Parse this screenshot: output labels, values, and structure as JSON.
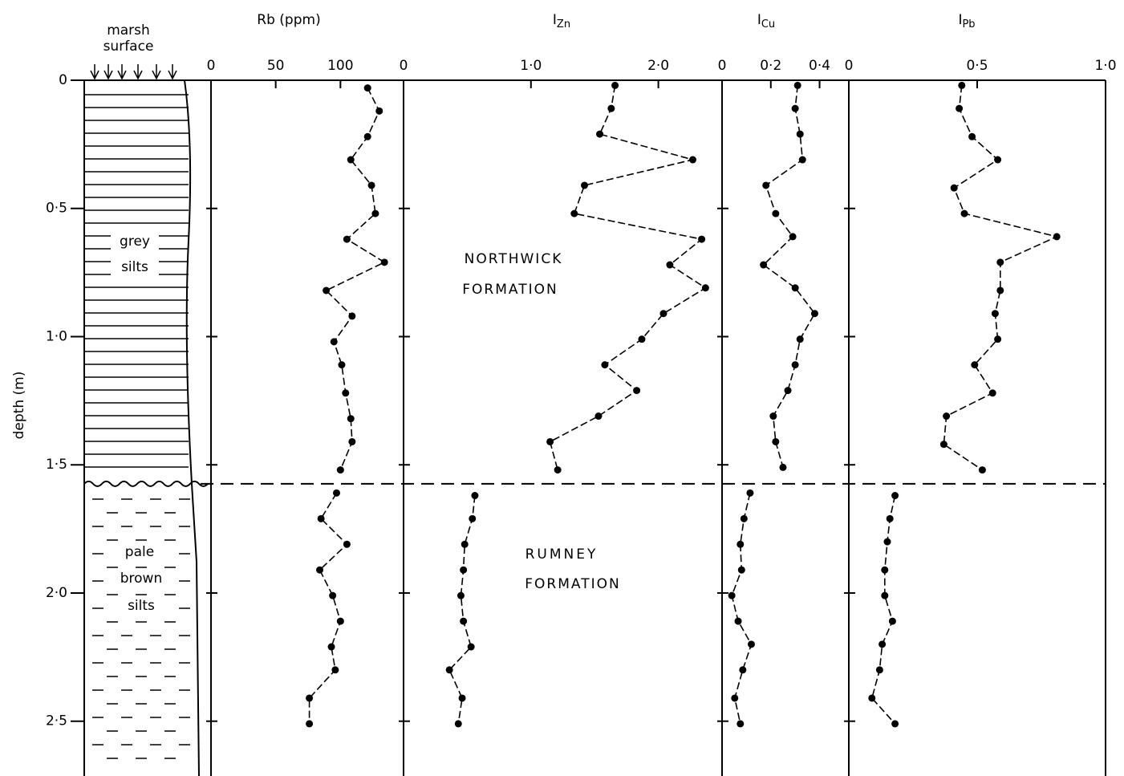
{
  "depth_axis": {
    "label": "depth (m)",
    "ylim": [
      0,
      2.7
    ],
    "yticks": [
      0,
      {
        "value": 0.5,
        "label": "0·5"
      },
      {
        "value": 1,
        "label": "1·0"
      },
      {
        "value": 1.5,
        "label": "1·5"
      },
      {
        "value": 2,
        "label": "2·0"
      },
      {
        "value": 2.5,
        "label": "2·5"
      }
    ]
  },
  "boundary_depth": 1.574,
  "lithology": {
    "surface_label": [
      "marsh",
      "surface"
    ],
    "upper_label": [
      "grey",
      "silts"
    ],
    "lower_label": [
      "pale",
      "brown",
      "silts"
    ]
  },
  "formations": {
    "upper": [
      "NORTHWICK",
      "FORMATION"
    ],
    "lower": [
      "RUMNEY",
      "FORMATION"
    ]
  },
  "chart_data": [
    {
      "type": "line",
      "title": "Rb (ppm)",
      "xlim": [
        0,
        150
      ],
      "xticks": [
        0,
        50,
        100
      ],
      "series": [
        {
          "color": "#000000",
          "depth": [
            0.03,
            0.12,
            0.22,
            0.31,
            0.41,
            0.52,
            0.62,
            0.71,
            0.82,
            0.92,
            1.02,
            1.11,
            1.22,
            1.32,
            1.41,
            1.52
          ],
          "values": [
            121,
            130,
            121,
            108,
            124,
            127,
            105,
            134,
            89,
            109,
            95,
            101,
            104,
            108,
            109,
            100
          ]
        },
        {
          "color": "#000000",
          "depth": [
            1.61,
            1.71,
            1.81,
            1.91,
            2.01,
            2.11,
            2.21,
            2.3,
            2.41,
            2.51
          ],
          "values": [
            97,
            85,
            105,
            84,
            94,
            100,
            93,
            96,
            76,
            76
          ]
        }
      ]
    },
    {
      "type": "line",
      "title": "I",
      "subscript": "Zn",
      "xlim": [
        0,
        2.5
      ],
      "xticks": [
        0,
        {
          "value": 1,
          "label": "1·0"
        },
        {
          "value": 2,
          "label": "2·0"
        }
      ],
      "series": [
        {
          "color": "#000000",
          "depth": [
            0.02,
            0.11,
            0.21,
            0.31,
            0.41,
            0.52,
            0.62,
            0.72,
            0.81,
            0.91,
            1.01,
            1.11,
            1.21,
            1.31,
            1.41,
            1.52
          ],
          "values": [
            1.66,
            1.63,
            1.54,
            2.27,
            1.42,
            1.34,
            2.34,
            2.09,
            2.37,
            2.04,
            1.87,
            1.58,
            1.83,
            1.53,
            1.15,
            1.21
          ]
        },
        {
          "color": "#000000",
          "depth": [
            1.62,
            1.71,
            1.81,
            1.91,
            2.01,
            2.11,
            2.21,
            2.3,
            2.41,
            2.51
          ],
          "values": [
            0.56,
            0.54,
            0.48,
            0.47,
            0.45,
            0.47,
            0.53,
            0.36,
            0.46,
            0.43
          ]
        }
      ]
    },
    {
      "type": "line",
      "title": "I",
      "subscript": "Cu",
      "xlim": [
        0,
        0.52
      ],
      "xticks": [
        0,
        {
          "value": 0.2,
          "label": "0·2"
        },
        {
          "value": 0.4,
          "label": "0·4"
        }
      ],
      "series": [
        {
          "color": "#000000",
          "depth": [
            0.02,
            0.11,
            0.21,
            0.31,
            0.41,
            0.52,
            0.61,
            0.72,
            0.81,
            0.91,
            1.01,
            1.11,
            1.21,
            1.31,
            1.41,
            1.51
          ],
          "values": [
            0.31,
            0.3,
            0.32,
            0.33,
            0.18,
            0.22,
            0.29,
            0.17,
            0.3,
            0.38,
            0.32,
            0.3,
            0.27,
            0.21,
            0.22,
            0.25
          ]
        },
        {
          "color": "#000000",
          "depth": [
            1.61,
            1.71,
            1.81,
            1.91,
            2.01,
            2.11,
            2.2,
            2.3,
            2.41,
            2.51
          ],
          "values": [
            0.115,
            0.09,
            0.075,
            0.08,
            0.04,
            0.066,
            0.12,
            0.085,
            0.052,
            0.075
          ]
        }
      ]
    },
    {
      "type": "line",
      "title": "I",
      "subscript": "Pb",
      "xlim": [
        0,
        1
      ],
      "xticks": [
        0,
        {
          "value": 0.5,
          "label": "0·5"
        },
        {
          "value": 1,
          "label": "1·0"
        }
      ],
      "series": [
        {
          "color": "#000000",
          "depth": [
            0.02,
            0.11,
            0.22,
            0.31,
            0.42,
            0.52,
            0.61,
            0.71,
            0.82,
            0.91,
            1.01,
            1.11,
            1.22,
            1.31,
            1.42,
            1.52
          ],
          "values": [
            0.44,
            0.43,
            0.48,
            0.58,
            0.41,
            0.45,
            0.81,
            0.59,
            0.59,
            0.57,
            0.58,
            0.49,
            0.56,
            0.38,
            0.37,
            0.52
          ]
        },
        {
          "color": "#000000",
          "depth": [
            1.62,
            1.71,
            1.8,
            1.91,
            2.01,
            2.11,
            2.2,
            2.3,
            2.41,
            2.51
          ],
          "values": [
            0.18,
            0.16,
            0.15,
            0.14,
            0.14,
            0.17,
            0.13,
            0.12,
            0.09,
            0.18
          ]
        }
      ]
    }
  ]
}
